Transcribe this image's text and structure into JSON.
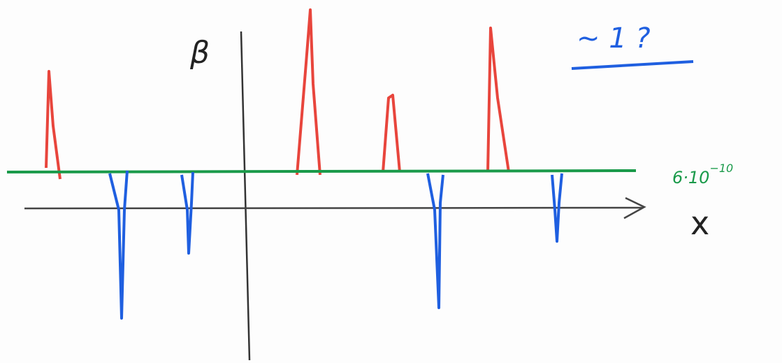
{
  "labels": {
    "y_axis": "β",
    "x_axis": "x",
    "note": "~ 1 ?",
    "level": {
      "base": "6·10",
      "exponent": "−10"
    }
  }
}
